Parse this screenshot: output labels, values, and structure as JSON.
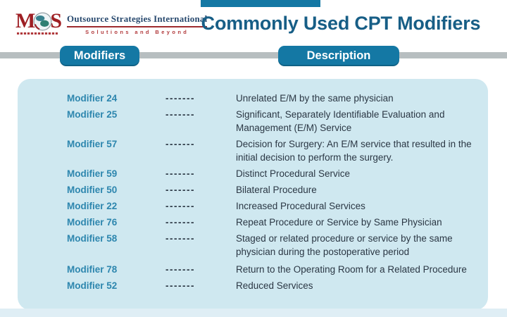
{
  "logo": {
    "monogram_m": "M",
    "monogram_s": "S",
    "name": "Outsource Strategies International",
    "tagline": "Solutions and Beyond"
  },
  "header": {
    "title": "Commonly Used CPT Modifiers"
  },
  "columns": {
    "modifiers_label": "Modifiers",
    "description_label": "Description"
  },
  "table": {
    "dash_separator": "-------",
    "rows": [
      {
        "modifier": "Modifier 24",
        "description": "Unrelated E/M by the same physician"
      },
      {
        "modifier": "Modifier 25",
        "description": "Significant, Separately Identifiable Evaluation and Management (E/M) Service"
      },
      {
        "modifier": "Modifier 57",
        "description": "Decision for Surgery: An E/M service that resulted in the initial decision to perform the surgery."
      },
      {
        "modifier": "Modifier 59",
        "description": "Distinct Procedural Service"
      },
      {
        "modifier": "Modifier 50",
        "description": "Bilateral Procedure"
      },
      {
        "modifier": "Modifier 22",
        "description": "Increased Procedural Services"
      },
      {
        "modifier": "Modifier 76",
        "description": "Repeat Procedure or Service by Same Physician"
      },
      {
        "modifier": "Modifier 58",
        "description": "Staged or related procedure or service by the same physician during the postoperative period"
      },
      {
        "modifier": "Modifier 78",
        "description": "Return to the Operating Room for a Related Procedure"
      },
      {
        "modifier": "Modifier 52",
        "description": "Reduced Services"
      }
    ]
  },
  "colors": {
    "title": "#175e86",
    "pill": "#1478a4",
    "bar": "#b7bec0",
    "panel": "#cfe8f0",
    "strip": "#dfeef5",
    "modifier": "#2d86ae",
    "ink": "#2b3744",
    "logo_red": "#9e1f24",
    "logo_navy": "#28496e"
  }
}
